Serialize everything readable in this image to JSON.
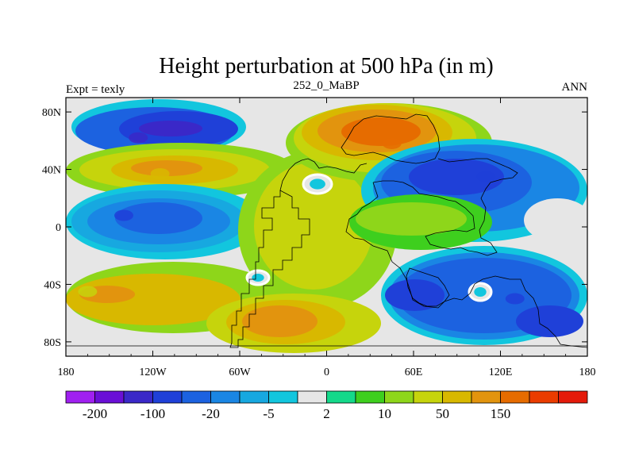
{
  "chart_data": {
    "type": "heatmap",
    "title": "Height perturbation at 500 hPa (in m)",
    "left_string": "Expt = texly",
    "center_string": "252_0_MaBP",
    "right_string": "ANN",
    "x_axis": {
      "range": [
        -180,
        180
      ],
      "ticks": [
        {
          "value": -180,
          "label": "180"
        },
        {
          "value": -120,
          "label": "120W"
        },
        {
          "value": -60,
          "label": "60W"
        },
        {
          "value": 0,
          "label": "0"
        },
        {
          "value": 60,
          "label": "60E"
        },
        {
          "value": 120,
          "label": "120E"
        },
        {
          "value": 180,
          "label": "180"
        }
      ]
    },
    "y_axis": {
      "range": [
        -90,
        90
      ],
      "ticks": [
        {
          "value": 80,
          "label": "80N"
        },
        {
          "value": 40,
          "label": "40N"
        },
        {
          "value": 0,
          "label": "0"
        },
        {
          "value": -40,
          "label": "40S"
        },
        {
          "value": -80,
          "label": "80S"
        }
      ]
    },
    "colorbar": {
      "colors": [
        "#a020f0",
        "#6a0fd6",
        "#3a28c8",
        "#1f40d8",
        "#1c62e0",
        "#1a86e4",
        "#17a8e0",
        "#12c6de",
        "#e6e6e6",
        "#14d98a",
        "#3ecf1e",
        "#8ed61a",
        "#c6d40c",
        "#d8b800",
        "#e2940e",
        "#e66c00",
        "#ea3c00",
        "#e41a0a"
      ],
      "boundaries": [
        -300,
        -200,
        -150,
        -100,
        -50,
        -20,
        -10,
        -5,
        -2,
        2,
        5,
        10,
        20,
        50,
        100,
        150,
        200,
        300
      ],
      "labels": [
        {
          "boundary_index": 1,
          "label": "-200"
        },
        {
          "boundary_index": 3,
          "label": "-100"
        },
        {
          "boundary_index": 5,
          "label": "-20"
        },
        {
          "boundary_index": 7,
          "label": "-5"
        },
        {
          "boundary_index": 9,
          "label": "2"
        },
        {
          "boundary_index": 11,
          "label": "10"
        },
        {
          "boundary_index": 13,
          "label": "50"
        },
        {
          "boundary_index": 15,
          "label": "150"
        }
      ]
    },
    "field_features": [
      {
        "name": "north-pacific-low",
        "lon": -130,
        "lat": 62,
        "value": -120
      },
      {
        "name": "north-america-ridge",
        "lon": -115,
        "lat": 37,
        "value": 80
      },
      {
        "name": "tropical-pacific-low",
        "lon": -140,
        "lat": 8,
        "value": -60
      },
      {
        "name": "south-pacific-low",
        "lon": -165,
        "lat": -45,
        "value": 40
      },
      {
        "name": "asia-high",
        "lon": 45,
        "lat": 58,
        "value": 150
      },
      {
        "name": "east-asia-low",
        "lon": 110,
        "lat": 35,
        "value": -80
      },
      {
        "name": "southern-ocean-low",
        "lon": 130,
        "lat": -50,
        "value": -90
      },
      {
        "name": "south-atlantic-high",
        "lon": -25,
        "lat": -67,
        "value": 100
      }
    ]
  }
}
